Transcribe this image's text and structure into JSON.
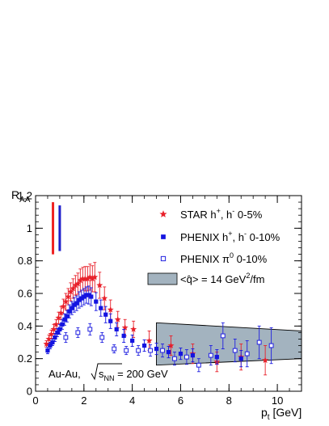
{
  "chart_data": {
    "type": "scatter",
    "title": "",
    "xlabel": "p_t [GeV]",
    "xlabel_main": "p",
    "xlabel_sub": "t",
    "xlabel_unit": " [GeV]",
    "ylabel": "R_AA",
    "ylabel_main": "R",
    "ylabel_sub": "AA",
    "xlim": [
      0,
      11
    ],
    "ylim": [
      0,
      1.2
    ],
    "x_ticks": [
      0,
      2,
      4,
      6,
      8,
      10
    ],
    "y_ticks": [
      0,
      0.2,
      0.4,
      0.6,
      0.8,
      1,
      1.2
    ],
    "x_tick_labels": [
      "0",
      "2",
      "4",
      "6",
      "8",
      "10"
    ],
    "y_tick_labels": [
      "0",
      "0.2",
      "0.4",
      "0.6",
      "0.8",
      "1",
      "1.2"
    ],
    "grid": false,
    "legend_position": "top-right",
    "normalization_bars": [
      {
        "x": 0.72,
        "y_low": 0.84,
        "y_high": 1.16,
        "color": "#ee2222"
      },
      {
        "x": 1.0,
        "y_low": 0.86,
        "y_high": 1.14,
        "color": "#1f1fcc"
      }
    ],
    "series": [
      {
        "name": "STAR h+ h- 0-5%",
        "label_main": "STAR  h",
        "label_tail": "  0-5%",
        "marker": "star",
        "color": "#e8202a",
        "points": [
          {
            "x": 0.45,
            "y": 0.29,
            "err": 0.02
          },
          {
            "x": 0.55,
            "y": 0.32,
            "err": 0.025
          },
          {
            "x": 0.65,
            "y": 0.35,
            "err": 0.025
          },
          {
            "x": 0.75,
            "y": 0.38,
            "err": 0.03
          },
          {
            "x": 0.85,
            "y": 0.41,
            "err": 0.03
          },
          {
            "x": 0.95,
            "y": 0.45,
            "err": 0.035
          },
          {
            "x": 1.05,
            "y": 0.48,
            "err": 0.04
          },
          {
            "x": 1.15,
            "y": 0.52,
            "err": 0.045
          },
          {
            "x": 1.25,
            "y": 0.55,
            "err": 0.05
          },
          {
            "x": 1.35,
            "y": 0.58,
            "err": 0.05
          },
          {
            "x": 1.45,
            "y": 0.61,
            "err": 0.055
          },
          {
            "x": 1.55,
            "y": 0.63,
            "err": 0.06
          },
          {
            "x": 1.65,
            "y": 0.65,
            "err": 0.06
          },
          {
            "x": 1.75,
            "y": 0.66,
            "err": 0.065
          },
          {
            "x": 1.85,
            "y": 0.68,
            "err": 0.07
          },
          {
            "x": 1.95,
            "y": 0.69,
            "err": 0.07
          },
          {
            "x": 2.05,
            "y": 0.69,
            "err": 0.075
          },
          {
            "x": 2.15,
            "y": 0.69,
            "err": 0.075
          },
          {
            "x": 2.25,
            "y": 0.7,
            "err": 0.08
          },
          {
            "x": 2.35,
            "y": 0.69,
            "err": 0.08
          },
          {
            "x": 2.45,
            "y": 0.7,
            "err": 0.09
          },
          {
            "x": 2.65,
            "y": 0.65,
            "err": 0.08
          },
          {
            "x": 2.85,
            "y": 0.57,
            "err": 0.07
          },
          {
            "x": 3.1,
            "y": 0.5,
            "err": 0.06
          },
          {
            "x": 3.4,
            "y": 0.44,
            "err": 0.05
          },
          {
            "x": 3.7,
            "y": 0.39,
            "err": 0.05
          },
          {
            "x": 4.05,
            "y": 0.38,
            "err": 0.05
          },
          {
            "x": 4.7,
            "y": 0.31,
            "err": 0.06
          },
          {
            "x": 5.6,
            "y": 0.28,
            "err": 0.06
          },
          {
            "x": 6.5,
            "y": 0.23,
            "err": 0.06
          },
          {
            "x": 7.5,
            "y": 0.18,
            "err": 0.06
          },
          {
            "x": 8.5,
            "y": 0.21,
            "err": 0.08
          },
          {
            "x": 9.5,
            "y": 0.19,
            "err": 0.09
          }
        ]
      },
      {
        "name": "PHENIX h+ h- 0-10%",
        "label_main": "PHENIX h",
        "label_tail": "  0-10%",
        "marker": "filled-square",
        "color": "#1414e0",
        "points": [
          {
            "x": 0.5,
            "y": 0.25,
            "err": 0.02
          },
          {
            "x": 0.6,
            "y": 0.28,
            "err": 0.02
          },
          {
            "x": 0.7,
            "y": 0.3,
            "err": 0.02
          },
          {
            "x": 0.8,
            "y": 0.33,
            "err": 0.025
          },
          {
            "x": 0.9,
            "y": 0.36,
            "err": 0.025
          },
          {
            "x": 1.0,
            "y": 0.38,
            "err": 0.03
          },
          {
            "x": 1.1,
            "y": 0.41,
            "err": 0.03
          },
          {
            "x": 1.2,
            "y": 0.44,
            "err": 0.035
          },
          {
            "x": 1.3,
            "y": 0.46,
            "err": 0.035
          },
          {
            "x": 1.4,
            "y": 0.49,
            "err": 0.04
          },
          {
            "x": 1.5,
            "y": 0.51,
            "err": 0.04
          },
          {
            "x": 1.6,
            "y": 0.53,
            "err": 0.045
          },
          {
            "x": 1.7,
            "y": 0.54,
            "err": 0.045
          },
          {
            "x": 1.8,
            "y": 0.56,
            "err": 0.05
          },
          {
            "x": 1.9,
            "y": 0.57,
            "err": 0.05
          },
          {
            "x": 2.0,
            "y": 0.58,
            "err": 0.05
          },
          {
            "x": 2.1,
            "y": 0.59,
            "err": 0.05
          },
          {
            "x": 2.2,
            "y": 0.59,
            "err": 0.055
          },
          {
            "x": 2.3,
            "y": 0.58,
            "err": 0.055
          },
          {
            "x": 2.5,
            "y": 0.55,
            "err": 0.055
          },
          {
            "x": 2.7,
            "y": 0.51,
            "err": 0.05
          },
          {
            "x": 2.9,
            "y": 0.47,
            "err": 0.05
          },
          {
            "x": 3.1,
            "y": 0.43,
            "err": 0.045
          },
          {
            "x": 3.35,
            "y": 0.38,
            "err": 0.04
          },
          {
            "x": 3.65,
            "y": 0.34,
            "err": 0.04
          },
          {
            "x": 4.0,
            "y": 0.31,
            "err": 0.035
          },
          {
            "x": 4.5,
            "y": 0.28,
            "err": 0.035
          },
          {
            "x": 5.0,
            "y": 0.26,
            "err": 0.035
          },
          {
            "x": 5.5,
            "y": 0.24,
            "err": 0.035
          },
          {
            "x": 6.0,
            "y": 0.23,
            "err": 0.035
          },
          {
            "x": 6.5,
            "y": 0.22,
            "err": 0.04
          },
          {
            "x": 7.5,
            "y": 0.21,
            "err": 0.045
          },
          {
            "x": 8.5,
            "y": 0.2,
            "err": 0.05
          }
        ]
      },
      {
        "name": "PHENIX π0 0-10%",
        "label_main": "PHENIX π",
        "label_tail": " 0-10%",
        "marker": "open-square",
        "color": "#2020e0",
        "points": [
          {
            "x": 1.25,
            "y": 0.33,
            "err": 0.03
          },
          {
            "x": 1.75,
            "y": 0.36,
            "err": 0.03
          },
          {
            "x": 2.25,
            "y": 0.38,
            "err": 0.035
          },
          {
            "x": 2.75,
            "y": 0.33,
            "err": 0.03
          },
          {
            "x": 3.25,
            "y": 0.26,
            "err": 0.025
          },
          {
            "x": 3.75,
            "y": 0.25,
            "err": 0.025
          },
          {
            "x": 4.25,
            "y": 0.25,
            "err": 0.03
          },
          {
            "x": 4.75,
            "y": 0.25,
            "err": 0.035
          },
          {
            "x": 5.25,
            "y": 0.25,
            "err": 0.04
          },
          {
            "x": 5.75,
            "y": 0.2,
            "err": 0.04
          },
          {
            "x": 6.25,
            "y": 0.21,
            "err": 0.045
          },
          {
            "x": 6.75,
            "y": 0.16,
            "err": 0.04
          },
          {
            "x": 7.25,
            "y": 0.22,
            "err": 0.06
          },
          {
            "x": 7.75,
            "y": 0.34,
            "err": 0.08
          },
          {
            "x": 8.25,
            "y": 0.25,
            "err": 0.07
          },
          {
            "x": 8.75,
            "y": 0.23,
            "err": 0.08
          },
          {
            "x": 9.25,
            "y": 0.3,
            "err": 0.1
          },
          {
            "x": 9.75,
            "y": 0.28,
            "err": 0.11
          }
        ]
      }
    ],
    "band": {
      "name": "<q̂> = 14 GeV²/fm",
      "label_main": "= 14 GeV",
      "label_sup": "2",
      "label_tail": "/fm",
      "qhat_label": "<q̂>",
      "color": "#a3b3bf",
      "upper": [
        {
          "x": 5.0,
          "y": 0.42
        },
        {
          "x": 11.0,
          "y": 0.37
        }
      ],
      "lower": [
        {
          "x": 5.0,
          "y": 0.16
        },
        {
          "x": 11.0,
          "y": 0.2
        }
      ]
    },
    "annotations": {
      "system": "Au-Au,",
      "energy_s": "s",
      "energy_sub": "NN",
      "energy_value": " = 200 GeV"
    }
  }
}
